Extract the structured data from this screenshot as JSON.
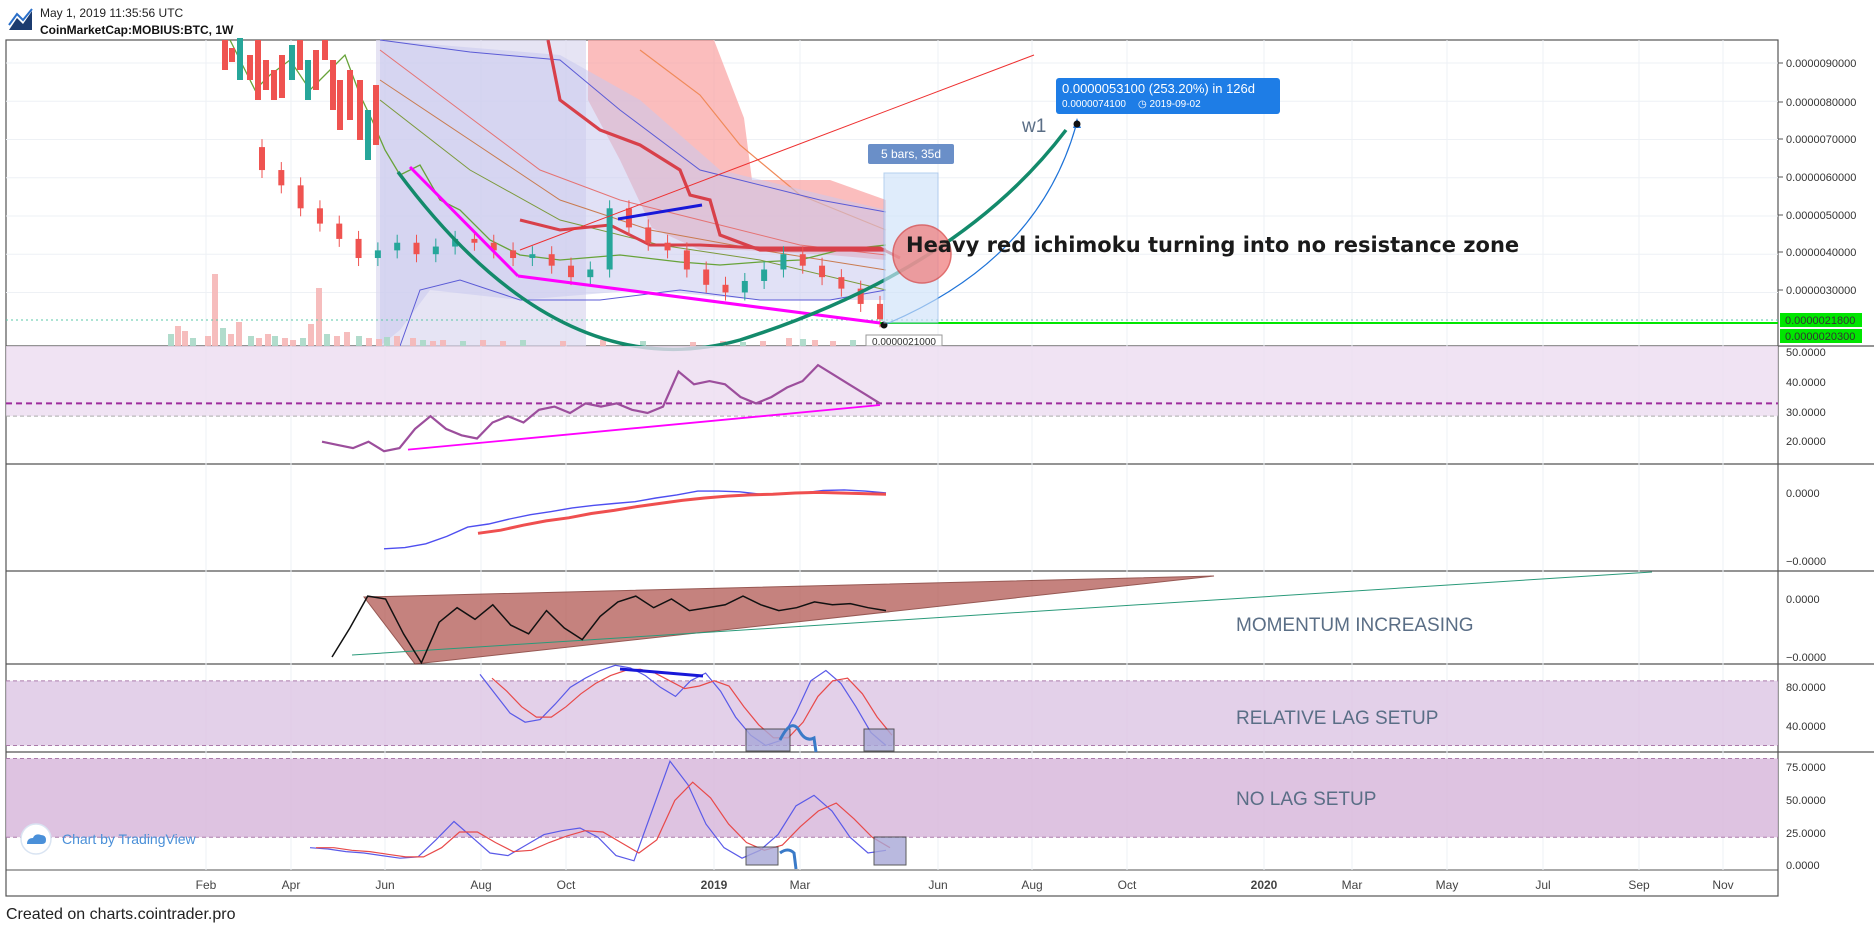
{
  "header": {
    "date_line": "May 1, 2019 11:35:56 UTC",
    "symbol_line": "CoinMarketCap:MOBIUS:BTC, 1W"
  },
  "footer": {
    "credit": "Created on charts.cointrader.pro"
  },
  "watermark": {
    "text": "Chart by TradingView"
  },
  "colors": {
    "up": "#26a69a",
    "down": "#ef5350",
    "cloud": "#f9a4a4",
    "bb_fill": "#c9c9ee",
    "rsi": "#9c4e9c",
    "support": "#00e600",
    "trend_pink": "#ff00ff",
    "arc_green": "#138a6b",
    "panel_purple": "#dcc4e4",
    "callout_blue": "#1e7de6"
  },
  "chart_data": [
    {
      "type": "candlestick",
      "panel": "price",
      "x_tick_labels": [
        "Feb",
        "Apr",
        "Jun",
        "Aug",
        "Oct",
        "2019",
        "Mar",
        "Jun",
        "Aug",
        "Oct",
        "2020",
        "Mar",
        "May",
        "Jul",
        "Sep",
        "Nov"
      ],
      "y_tick_labels": [
        "0.0000090000",
        "0.0000080000",
        "0.0000070000",
        "0.0000060000",
        "0.0000050000",
        "0.0000040000",
        "0.0000030000"
      ],
      "ylim": [
        1.6e-06,
        9.6e-06
      ],
      "price_labels": [
        "0.0000021800",
        "0.0000020300"
      ],
      "low_label": "0.0000021000",
      "measure_label": "5 bars, 35d",
      "wave_label": "w1",
      "projection": {
        "line1": "0.0000053100 (253.20%) in 126d",
        "line2": "0.0000074100",
        "line2_date": "2019-09-02"
      },
      "annotation": "Heavy red ichimoku turning into no resistance zone",
      "series": [
        {
          "name": "close",
          "values": [
            6.2e-06,
            5.8e-06,
            5.2e-06,
            4.8e-06,
            4.4e-06,
            3.9e-06,
            4.1e-06,
            4.3e-06,
            4e-06,
            4.2e-06,
            4.4e-06,
            4.3e-06,
            4.1e-06,
            3.9e-06,
            4e-06,
            3.7e-06,
            3.4e-06,
            3.6e-06,
            5.2e-06,
            4.7e-06,
            4.3e-06,
            4.1e-06,
            3.6e-06,
            3.2e-06,
            3e-06,
            3.3e-06,
            3.6e-06,
            4e-06,
            3.7e-06,
            3.4e-06,
            3.1e-06,
            2.7e-06,
            2.3e-06
          ]
        }
      ]
    },
    {
      "type": "line",
      "panel": "rsi",
      "y_tick_labels": [
        "50.0000",
        "40.0000",
        "30.0000",
        "20.0000"
      ],
      "ylim": [
        15,
        52
      ],
      "series": [
        {
          "name": "rsi",
          "values": [
            22,
            21,
            20,
            22,
            19,
            20,
            26,
            30,
            26,
            24,
            23,
            28,
            30,
            28,
            32,
            33,
            31,
            34,
            33,
            34,
            32,
            31,
            33,
            44,
            40,
            41,
            40,
            36,
            34,
            36,
            39,
            41,
            46,
            43,
            40,
            37,
            34
          ]
        }
      ]
    },
    {
      "type": "line",
      "panel": "oscillator",
      "y_tick_labels": [
        "0.0000",
        "−0.0000"
      ],
      "series": [
        {
          "name": "fast",
          "values": [
            -0.9,
            -0.88,
            -0.82,
            -0.7,
            -0.55,
            -0.5,
            -0.42,
            -0.35,
            -0.3,
            -0.24,
            -0.2,
            -0.17,
            -0.14,
            -0.08,
            -0.03,
            0.03,
            0.03,
            0.02,
            -0.02,
            -0.01,
            0.0,
            0.04,
            0.05,
            0.03,
            0.0
          ]
        },
        {
          "name": "slow",
          "values": [
            -0.65,
            -0.6,
            -0.52,
            -0.45,
            -0.4,
            -0.33,
            -0.28,
            -0.22,
            -0.17,
            -0.12,
            -0.08,
            -0.05,
            -0.03,
            -0.02,
            0.0,
            0.01,
            0.0,
            -0.01,
            -0.02
          ]
        }
      ]
    },
    {
      "type": "line",
      "panel": "momentum",
      "y_tick_labels": [
        "0.0000",
        "−0.0000"
      ],
      "annotation": "MOMENTUM INCREASING",
      "series": [
        {
          "name": "momentum",
          "values": [
            -1.0,
            -0.5,
            0.05,
            0.0,
            -0.6,
            -1.1,
            -0.4,
            -0.15,
            -0.35,
            -0.1,
            -0.45,
            -0.6,
            -0.2,
            -0.5,
            -0.7,
            -0.3,
            -0.05,
            0.05,
            -0.15,
            0.0,
            -0.2,
            -0.15,
            -0.1,
            0.05,
            -0.1,
            -0.2,
            -0.15,
            -0.05,
            -0.1,
            -0.08,
            -0.15,
            -0.2
          ]
        }
      ]
    },
    {
      "type": "line",
      "panel": "stoch_relative_lag",
      "y_tick_labels": [
        "80.0000",
        "40.0000"
      ],
      "ylim": [
        25,
        93
      ],
      "annotation": "RELATIVE LAG SETUP",
      "series": [
        {
          "name": "k",
          "values": [
            85,
            70,
            55,
            48,
            50,
            62,
            75,
            82,
            88,
            92,
            90,
            84,
            75,
            68,
            80,
            86,
            72,
            52,
            38,
            30,
            34,
            55,
            80,
            88,
            78,
            60,
            40,
            30
          ]
        },
        {
          "name": "d",
          "values": [
            82,
            72,
            60,
            52,
            52,
            60,
            70,
            78,
            84,
            88,
            89,
            86,
            80,
            74,
            76,
            80,
            76,
            60,
            46,
            36,
            36,
            48,
            68,
            80,
            82,
            70,
            52,
            38
          ]
        }
      ]
    },
    {
      "type": "line",
      "panel": "stoch_no_lag",
      "y_tick_labels": [
        "75.0000",
        "50.0000",
        "25.0000",
        "0.0000"
      ],
      "ylim": [
        -5,
        85
      ],
      "annotation": "NO LAG SETUP",
      "series": [
        {
          "name": "k",
          "values": [
            12,
            11,
            9,
            8,
            6,
            4,
            5,
            18,
            32,
            20,
            8,
            6,
            14,
            22,
            25,
            27,
            20,
            6,
            2,
            40,
            78,
            60,
            30,
            12,
            4,
            10,
            22,
            44,
            52,
            40,
            20,
            8,
            10
          ]
        },
        {
          "name": "d",
          "values": [
            12,
            12,
            10,
            9,
            7,
            5,
            5,
            12,
            24,
            24,
            16,
            9,
            10,
            16,
            21,
            25,
            24,
            16,
            8,
            18,
            48,
            62,
            50,
            30,
            16,
            10,
            14,
            28,
            40,
            46,
            34,
            20,
            12
          ]
        }
      ]
    }
  ]
}
